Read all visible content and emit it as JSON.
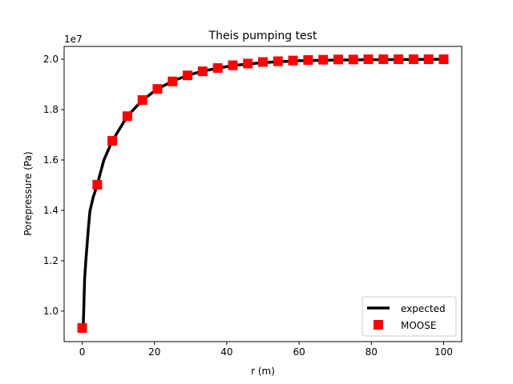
{
  "chart_data": {
    "type": "line",
    "title": "Theis pumping test",
    "xlabel": "r (m)",
    "ylabel": "Porepressure (Pa)",
    "y_offset_label": "1e7",
    "xlim": [
      -5,
      105
    ],
    "ylim": [
      0.879,
      2.051
    ],
    "xticks": [
      0,
      20,
      40,
      60,
      80,
      100
    ],
    "xtick_labels": [
      "0",
      "20",
      "40",
      "60",
      "80",
      "100"
    ],
    "yticks": [
      1.0,
      1.2,
      1.4,
      1.6,
      1.8,
      2.0
    ],
    "ytick_labels": [
      "1.0",
      "1.2",
      "1.4",
      "1.6",
      "1.8",
      "2.0"
    ],
    "grid": false,
    "legend_position": "lower-right",
    "series": [
      {
        "name": "expected",
        "style": "line",
        "color": "#000000",
        "x": [
          0.3,
          0.67,
          1.0,
          1.7,
          2.15,
          3,
          4.17,
          6,
          8.33,
          12.5,
          16.67,
          20.83,
          25,
          29.17,
          33.33,
          41.67,
          50,
          60,
          75,
          100
        ],
        "y": [
          0.943,
          1.13,
          1.2,
          1.327,
          1.397,
          1.45,
          1.502,
          1.6,
          1.676,
          1.774,
          1.838,
          1.882,
          1.913,
          1.936,
          1.953,
          1.975,
          1.987,
          1.994,
          1.998,
          2.0
        ]
      },
      {
        "name": "MOOSE",
        "style": "square-marker",
        "color": "#ff0000",
        "x": [
          0,
          4.17,
          8.33,
          12.5,
          16.67,
          20.83,
          25,
          29.17,
          33.33,
          37.5,
          41.67,
          45.83,
          50,
          54.17,
          58.33,
          62.5,
          66.67,
          70.83,
          75,
          79.17,
          83.33,
          87.5,
          91.67,
          95.83,
          100
        ],
        "y": [
          0.933,
          1.502,
          1.676,
          1.774,
          1.838,
          1.882,
          1.912,
          1.936,
          1.952,
          1.965,
          1.976,
          1.983,
          1.989,
          1.992,
          1.995,
          1.997,
          1.998,
          1.999,
          1.999,
          2.0,
          2.0,
          2.0,
          2.0,
          2.0,
          2.0
        ]
      }
    ]
  }
}
